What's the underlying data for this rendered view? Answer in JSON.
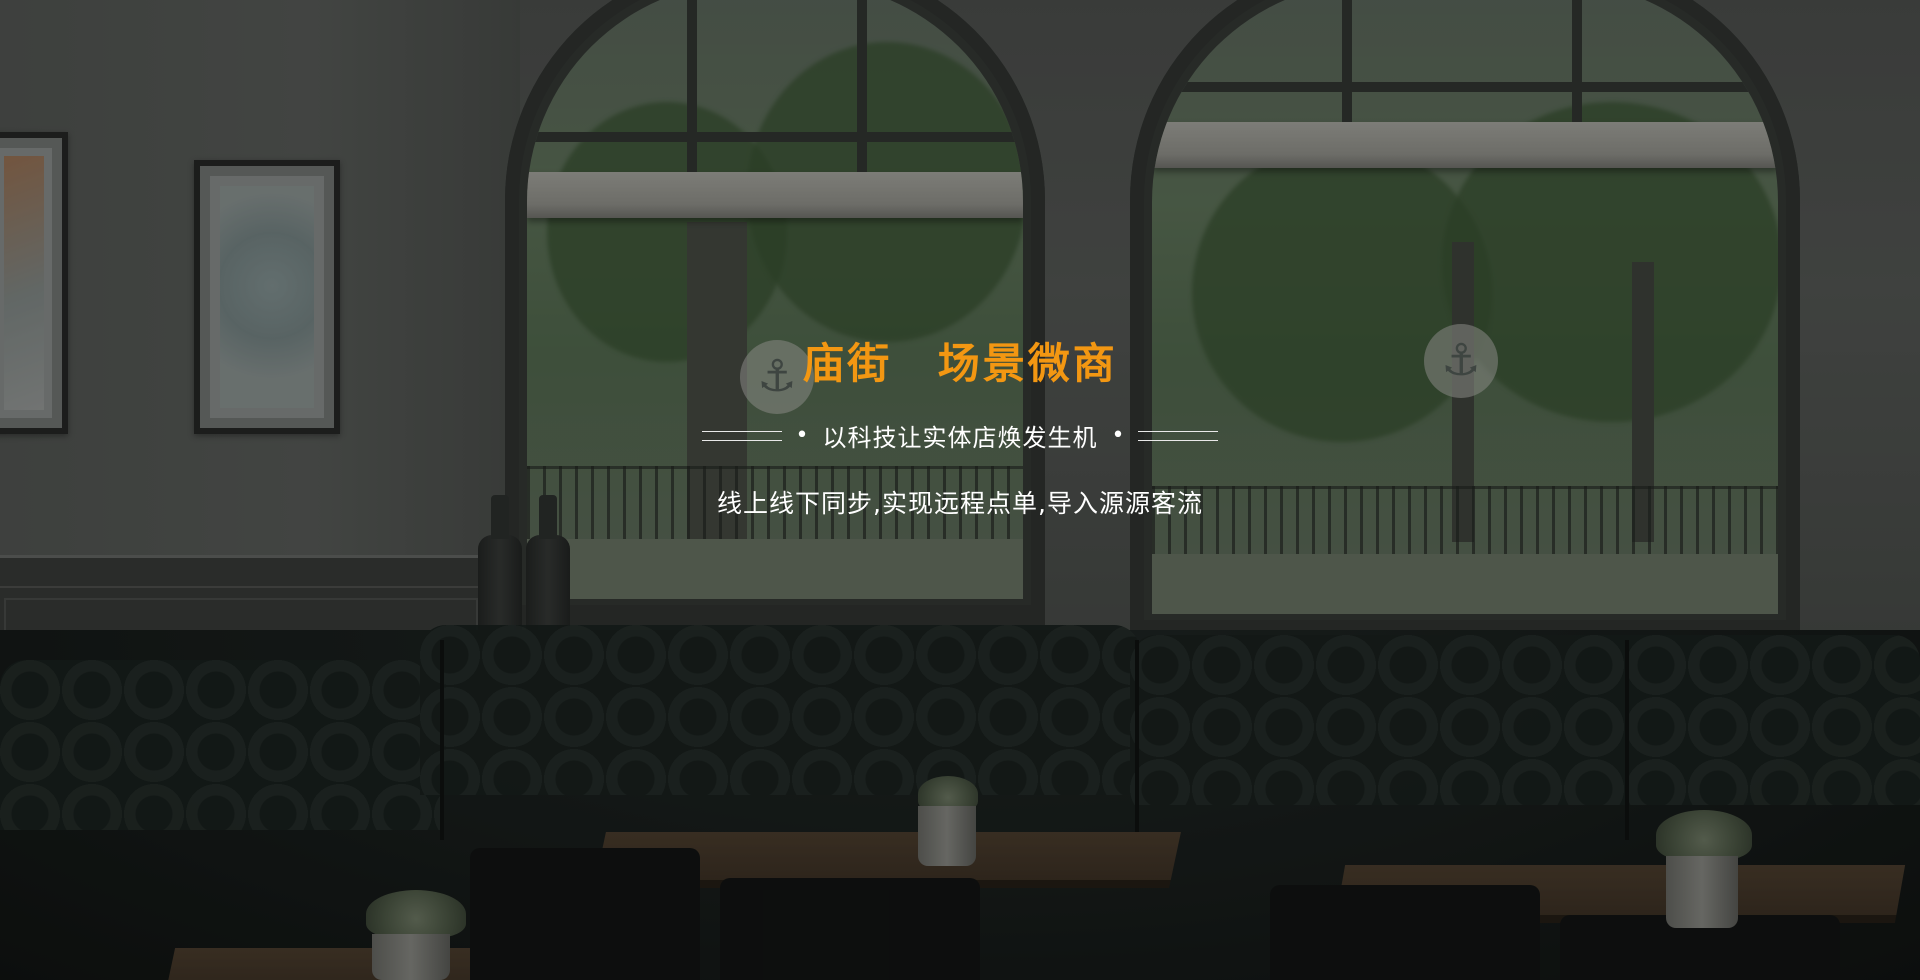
{
  "hero": {
    "title": "庙街  场景微商",
    "tagline": "以科技让实体店焕发生机",
    "tagline_bullet": "•",
    "description": "线上线下同步,实现远程点单,导入源源客流"
  },
  "colors": {
    "title_accent": "#f39712",
    "text": "#ffffff",
    "overlay": "rgba(0,0,0,0.38)"
  },
  "icons": {
    "window_decal": "anchor-icon"
  }
}
